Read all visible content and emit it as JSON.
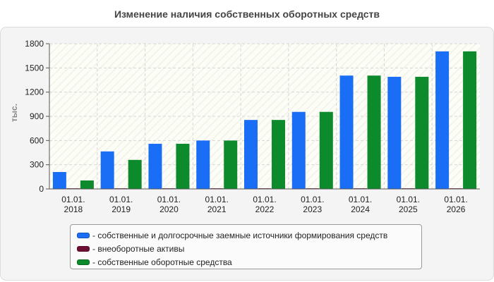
{
  "chart_data": {
    "type": "bar",
    "title": "Изменение наличия собственных оборотных средств",
    "ylabel": "тыс.",
    "xlabel": "",
    "ylim": [
      0,
      1800
    ],
    "yticks": [
      0,
      300,
      600,
      900,
      1200,
      1500,
      1800
    ],
    "grid": true,
    "legend_position": "bottom",
    "categories": [
      [
        "01.01.",
        "2018"
      ],
      [
        "01.01.",
        "2019"
      ],
      [
        "01.01.",
        "2020"
      ],
      [
        "01.01.",
        "2021"
      ],
      [
        "01.01.",
        "2022"
      ],
      [
        "01.01.",
        "2023"
      ],
      [
        "01.01.",
        "2024"
      ],
      [
        "01.01.",
        "2025"
      ],
      [
        "01.01.",
        "2026"
      ]
    ],
    "series": [
      {
        "name": "- собственные и долгосрочные заемные источники формирования средств",
        "color": "#1a6ef5",
        "values": [
          210,
          465,
          560,
          600,
          855,
          955,
          1405,
          1390,
          1705
        ]
      },
      {
        "name": "- внеоборотные активы",
        "color": "#6e0f33",
        "values": [
          8,
          8,
          8,
          8,
          8,
          8,
          8,
          8,
          8
        ]
      },
      {
        "name": "- собственные оборотные средства",
        "color": "#0c8a2c",
        "values": [
          105,
          360,
          560,
          600,
          855,
          955,
          1405,
          1390,
          1705
        ]
      }
    ]
  }
}
